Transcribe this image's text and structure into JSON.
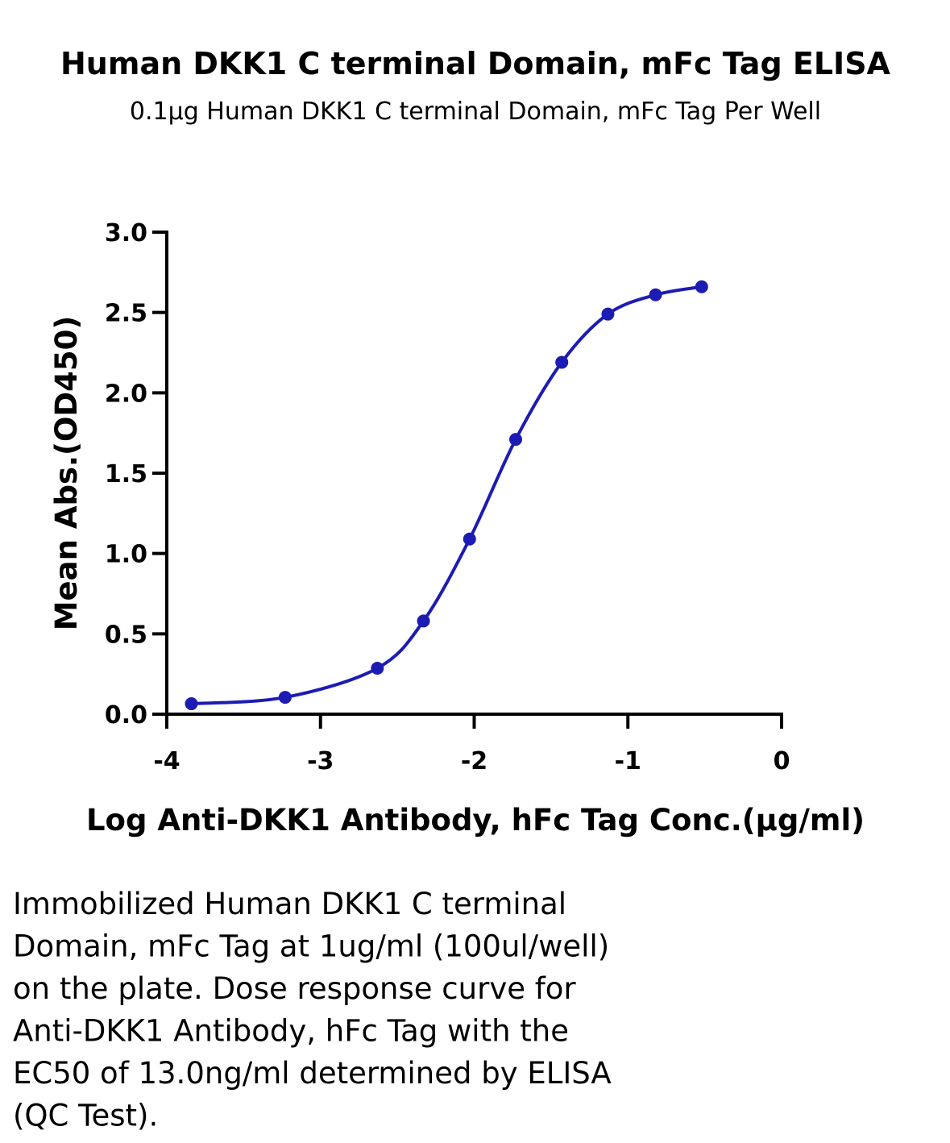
{
  "chart_data": {
    "type": "scatter",
    "title": "Human DKK1 C terminal Domain, mFc Tag ELISA",
    "subtitle": "0.1μg Human DKK1 C terminal Domain, mFc Tag Per Well",
    "x_label": "Log Anti-DKK1 Antibody, hFc Tag Conc.(μg/ml)",
    "y_label": "Mean Abs.(OD450)",
    "x": [
      -3.84,
      -3.23,
      -2.63,
      -2.33,
      -2.03,
      -1.73,
      -1.43,
      -1.13,
      -0.82,
      -0.52
    ],
    "values": [
      0.065,
      0.105,
      0.286,
      0.58,
      1.09,
      1.71,
      2.19,
      2.49,
      2.61,
      2.66
    ],
    "color": "#1c1cb4",
    "xlim": [
      -4,
      0
    ],
    "xticks": [
      -4,
      -3,
      -2,
      -1,
      0
    ],
    "ylim": [
      0,
      3
    ],
    "yticks": [
      {
        "value": 0,
        "label": "0.0"
      },
      0.5,
      {
        "value": 1,
        "label": "1.0"
      },
      1.5,
      {
        "value": 2,
        "label": "2.0"
      },
      2.5,
      {
        "value": 3,
        "label": "3.0"
      }
    ],
    "fit_curve": true
  },
  "caption": [
    "Immobilized Human DKK1 C terminal",
    "Domain, mFc Tag at 1ug/ml (100ul/well)",
    "on the plate. Dose response curve for",
    "Anti-DKK1 Antibody, hFc Tag with the",
    "EC50 of 13.0ng/ml determined by ELISA",
    "(QC Test)."
  ]
}
